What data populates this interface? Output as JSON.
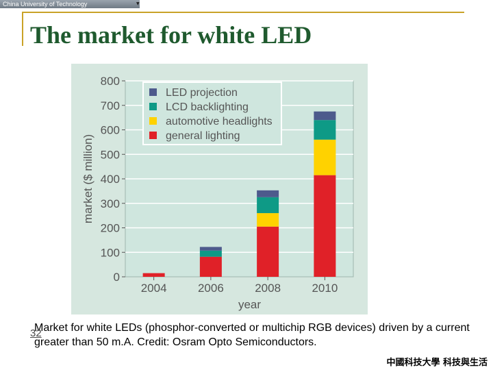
{
  "header": {
    "university_name": "China University of Technology"
  },
  "slide": {
    "title": "The market for white LED",
    "caption": "Market for white LEDs (phosphor-converted or multichip RGB devices) driven by a current greater than 50 m.A. Credit: Osram Opto Semiconductors.",
    "page_number": "32",
    "footer_org": "中國科技大學 科技與生活"
  },
  "chart_data": {
    "type": "bar",
    "stacked": true,
    "title": "",
    "xlabel": "year",
    "ylabel": "market ($ million)",
    "ylim": [
      0,
      800
    ],
    "yticks": [
      0,
      100,
      200,
      300,
      400,
      500,
      600,
      700,
      800
    ],
    "grid": true,
    "legend_position": "top-left",
    "categories": [
      "2004",
      "2006",
      "2008",
      "2010"
    ],
    "series": [
      {
        "name": "general lighting",
        "color": "#e02128",
        "values": [
          15,
          82,
          205,
          415
        ]
      },
      {
        "name": "automotive headlights",
        "color": "#ffd200",
        "values": [
          0,
          0,
          55,
          145
        ]
      },
      {
        "name": "LCD backlighting",
        "color": "#0e9a86",
        "values": [
          0,
          25,
          65,
          80
        ]
      },
      {
        "name": "LED projection",
        "color": "#4d5a8c",
        "values": [
          0,
          15,
          28,
          35
        ]
      }
    ],
    "legend_order": [
      "LED projection",
      "LCD backlighting",
      "automotive headlights",
      "general lighting"
    ]
  }
}
